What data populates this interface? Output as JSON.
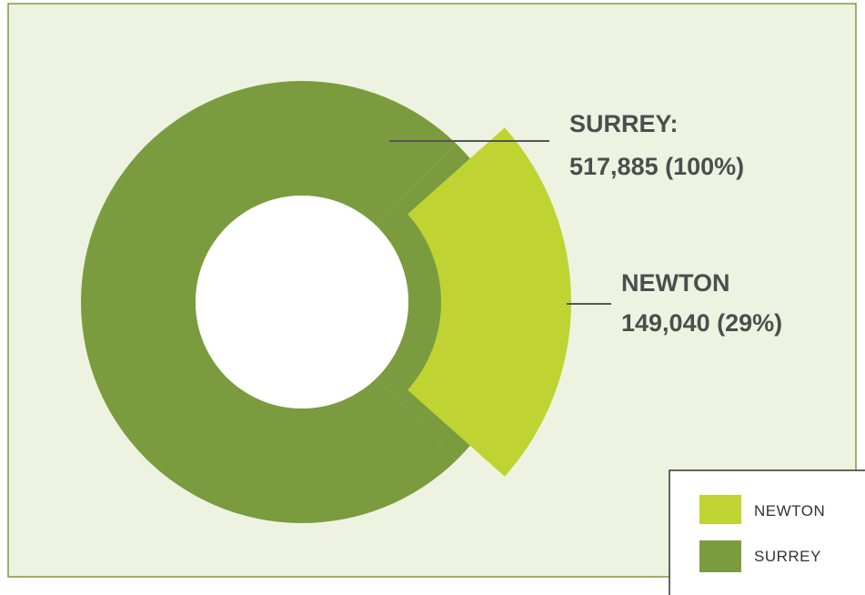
{
  "chart_data": {
    "type": "pie",
    "style": "donut with exploded slice",
    "slices": [
      {
        "name": "NEWTON",
        "value": 149040,
        "percent": 29,
        "color": "#bfd333",
        "exploded": true
      },
      {
        "name": "SURREY",
        "value": 517885,
        "percent": 100,
        "color": "#7a9c3e"
      }
    ],
    "labels": {
      "surrey_line1": "SURREY:",
      "surrey_line2": "517,885 (100%)",
      "newton_line1": "NEWTON",
      "newton_line2": "149,040 (29%)"
    },
    "legend": {
      "placement": "bottom-right",
      "items": [
        {
          "label": "NEWTON",
          "color": "#bfd333"
        },
        {
          "label": "SURREY",
          "color": "#7a9c3e"
        }
      ]
    }
  },
  "colors": {
    "panel_background": "#eef3e1",
    "panel_border": "#7a9c3e",
    "leader_line": "#555555",
    "label_text": "#4d4d4f"
  }
}
